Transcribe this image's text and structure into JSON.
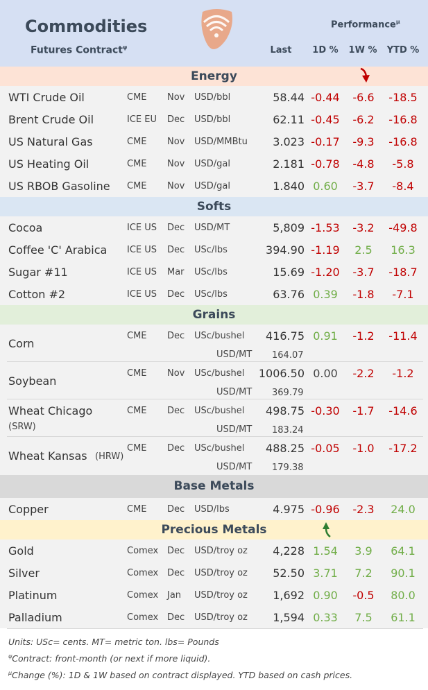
{
  "header": {
    "title": "Commodities",
    "subtitle": "Futures Contract",
    "subtitle_mark": "ψ",
    "performance": "Performance",
    "performance_mark": "μ",
    "col_last": "Last",
    "col_1d": "1D %",
    "col_1w": "1W %",
    "col_ytd": "YTD %"
  },
  "sections": {
    "energy": "Energy",
    "softs": "Softs",
    "grains": "Grains",
    "base_metals": "Base Metals",
    "precious_metals": "Precious Metals"
  },
  "energy": [
    {
      "name": "WTI Crude Oil",
      "ex": "CME",
      "mo": "Nov",
      "unit": "USD/bbl",
      "last": "58.44",
      "d1": "-0.44",
      "w1": "-6.6",
      "ytd": "-18.5"
    },
    {
      "name": "Brent Crude Oil",
      "ex": "ICE EU",
      "mo": "Dec",
      "unit": "USD/bbl",
      "last": "62.11",
      "d1": "-0.45",
      "w1": "-6.2",
      "ytd": "-16.8"
    },
    {
      "name": "US Natural Gas",
      "ex": "CME",
      "mo": "Nov",
      "unit": "USD/MMBtu",
      "last": "3.023",
      "d1": "-0.17",
      "w1": "-9.3",
      "ytd": "-16.8"
    },
    {
      "name": "US Heating Oil",
      "ex": "CME",
      "mo": "Nov",
      "unit": "USD/gal",
      "last": "2.181",
      "d1": "-0.78",
      "w1": "-4.8",
      "ytd": "-5.8"
    },
    {
      "name": "US RBOB Gasoline",
      "ex": "CME",
      "mo": "Nov",
      "unit": "USD/gal",
      "last": "1.840",
      "d1": "0.60",
      "w1": "-3.7",
      "ytd": "-8.4"
    }
  ],
  "softs": [
    {
      "name": "Cocoa",
      "ex": "ICE US",
      "mo": "Dec",
      "unit": "USD/MT",
      "last": "5,809",
      "d1": "-1.53",
      "w1": "-3.2",
      "ytd": "-49.8"
    },
    {
      "name": "Coffee 'C' Arabica",
      "ex": "ICE US",
      "mo": "Dec",
      "unit": "USc/lbs",
      "last": "394.90",
      "d1": "-1.19",
      "w1": "2.5",
      "ytd": "16.3"
    },
    {
      "name": "Sugar #11",
      "ex": "ICE US",
      "mo": "Mar",
      "unit": "USc/lbs",
      "last": "15.69",
      "d1": "-1.20",
      "w1": "-3.7",
      "ytd": "-18.7"
    },
    {
      "name": "Cotton #2",
      "ex": "ICE US",
      "mo": "Dec",
      "unit": "USc/lbs",
      "last": "63.76",
      "d1": "0.39",
      "w1": "-1.8",
      "ytd": "-7.1"
    }
  ],
  "grains": [
    {
      "name": "Corn",
      "sub": "",
      "ex": "CME",
      "mo": "Dec",
      "unit": "USc/bushel",
      "last": "416.75",
      "unit2": "USD/MT",
      "last2": "164.07",
      "d1": "0.91",
      "w1": "-1.2",
      "ytd": "-11.4"
    },
    {
      "name": "Soybean",
      "sub": "",
      "ex": "CME",
      "mo": "Nov",
      "unit": "USc/bushel",
      "last": "1006.50",
      "unit2": "USD/MT",
      "last2": "369.79",
      "d1": "0.00",
      "w1": "-2.2",
      "ytd": "-1.2"
    },
    {
      "name": "Wheat Chicago",
      "sub": "(SRW)",
      "ex": "CME",
      "mo": "Dec",
      "unit": "USc/bushel",
      "last": "498.75",
      "unit2": "USD/MT",
      "last2": "183.24",
      "d1": "-0.30",
      "w1": "-1.7",
      "ytd": "-14.6"
    },
    {
      "name": "Wheat Kansas",
      "sub": "(HRW)",
      "ex": "CME",
      "mo": "Dec",
      "unit": "USc/bushel",
      "last": "488.25",
      "unit2": "USD/MT",
      "last2": "179.38",
      "d1": "-0.05",
      "w1": "-1.0",
      "ytd": "-17.2"
    }
  ],
  "base_metals": [
    {
      "name": "Copper",
      "ex": "CME",
      "mo": "Dec",
      "unit": "USD/lbs",
      "last": "4.975",
      "d1": "-0.96",
      "w1": "-2.3",
      "ytd": "24.0"
    }
  ],
  "precious_metals": [
    {
      "name": "Gold",
      "ex": "Comex",
      "mo": "Dec",
      "unit": "USD/troy oz",
      "last": "4,228",
      "d1": "1.54",
      "w1": "3.9",
      "ytd": "64.1"
    },
    {
      "name": "Silver",
      "ex": "Comex",
      "mo": "Dec",
      "unit": "USD/troy oz",
      "last": "52.50",
      "d1": "3.71",
      "w1": "7.2",
      "ytd": "90.1"
    },
    {
      "name": "Platinum",
      "ex": "Comex",
      "mo": "Jan",
      "unit": "USD/troy oz",
      "last": "1,692",
      "d1": "0.90",
      "w1": "-0.5",
      "ytd": "80.0"
    },
    {
      "name": "Palladium",
      "ex": "Comex",
      "mo": "Dec",
      "unit": "USD/troy oz",
      "last": "1,594",
      "d1": "0.33",
      "w1": "7.5",
      "ytd": "61.1"
    }
  ],
  "footnotes": {
    "units": "Units: USc= cents.  MT= metric ton.  lbs= Pounds",
    "contract": "Contract: front-month (or next if more liquid).",
    "contract_mark": "ψ",
    "change": "Change (%): 1D & 1W based on contract displayed. YTD based on cash prices.",
    "change_mark": "μ"
  },
  "colors": {
    "header_bg": "#d6e0f3",
    "energy_bg": "#fde3d6",
    "softs_bg": "#dae6f3",
    "grains_bg": "#e2efda",
    "base_metals_bg": "#d9d9d9",
    "precious_bg": "#fff2cc",
    "negative": "#c00000",
    "positive": "#70ad47",
    "logo": "#e8a88a"
  },
  "icons": {
    "logo": "signal-logo-icon",
    "energy_arrow": "arrow-down-red-icon",
    "precious_arrow": "arrow-up-green-icon"
  }
}
